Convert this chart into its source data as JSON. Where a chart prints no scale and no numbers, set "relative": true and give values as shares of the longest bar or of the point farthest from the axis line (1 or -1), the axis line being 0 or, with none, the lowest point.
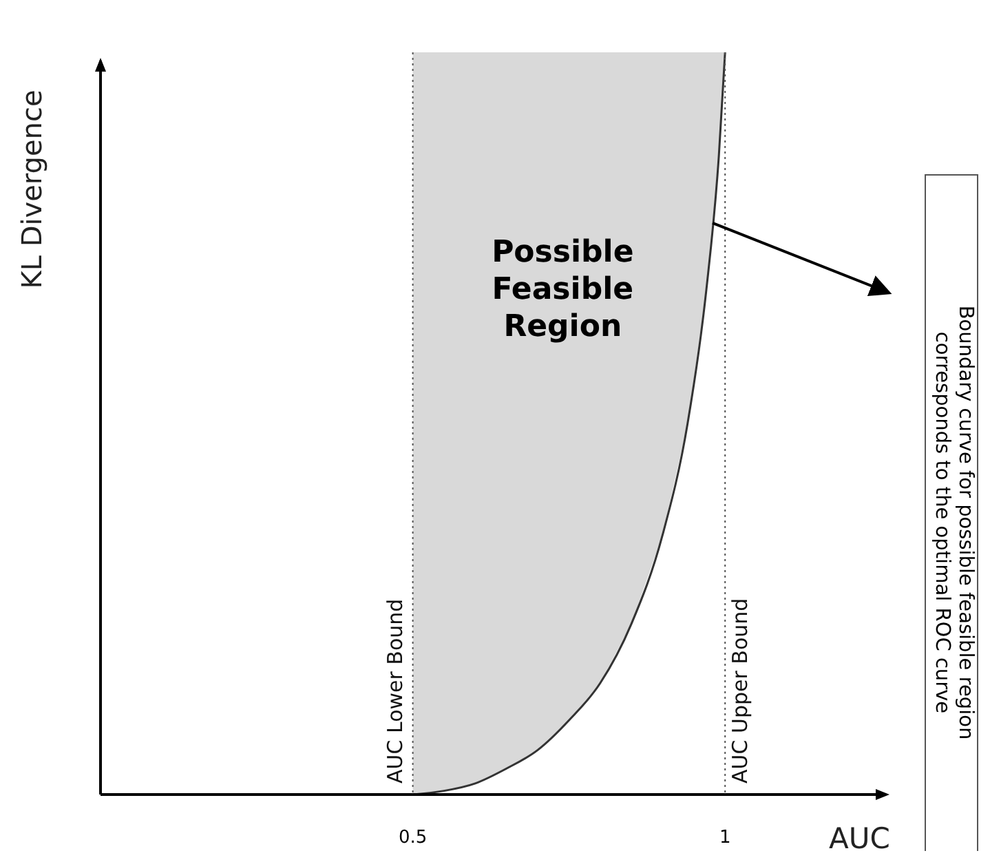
{
  "chart_data": {
    "type": "line",
    "relative": true,
    "xlabel": "AUC",
    "ylabel": "KL Divergence",
    "xlim": [
      0,
      1.25
    ],
    "xticks": [
      0.5,
      1
    ],
    "series": [
      {
        "color": "#333333",
        "x": [
          0.5,
          0.55,
          0.6,
          0.65,
          0.7,
          0.75,
          0.8,
          0.85,
          0.9,
          0.94,
          0.97,
          0.99,
          1
        ],
        "values": [
          0,
          0.005,
          0.015,
          0.035,
          0.06,
          0.1,
          0.15,
          0.23,
          0.35,
          0.5,
          0.68,
          0.86,
          1
        ],
        "lower": [
          0,
          0.005,
          0.015,
          0.035,
          0.06,
          0.1,
          0.15,
          0.23,
          0.35,
          0.5,
          0.68,
          0.86,
          1
        ],
        "upper": [
          1,
          1,
          1,
          1,
          1,
          1,
          1,
          1,
          1,
          1,
          1,
          1,
          1
        ]
      }
    ],
    "ref_lines": [
      {
        "axis": "x",
        "value": 0.5,
        "label": "AUC Lower Bound",
        "line_style": "dotted",
        "color": "#555555"
      },
      {
        "axis": "x",
        "value": 1,
        "label": "AUC Upper Bound",
        "line_style": "dotted",
        "color": "#555555"
      }
    ],
    "annotations": [
      "Possible Feasible Region",
      "Boundary curve for possible feasible region corresponds to the optimal ROC curve"
    ],
    "line_style": "solid"
  }
}
